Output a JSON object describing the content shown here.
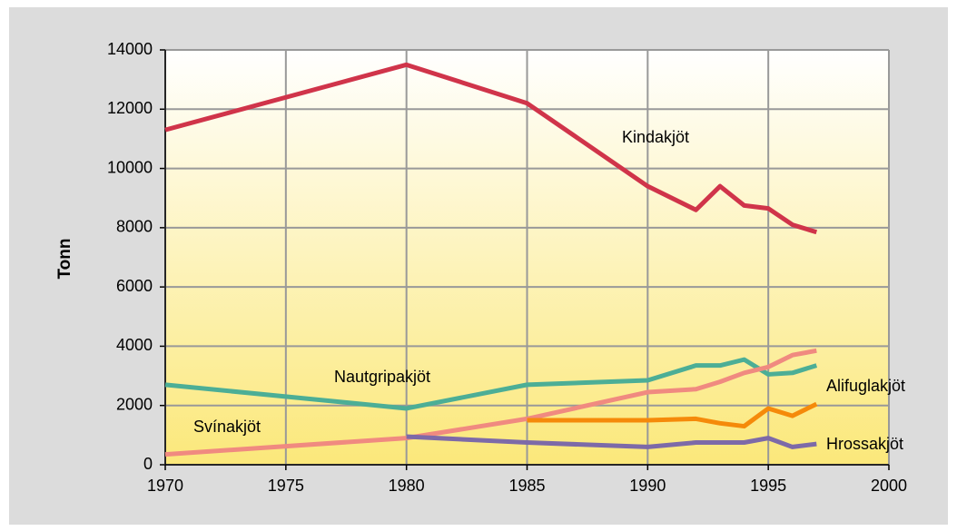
{
  "chart_data": {
    "type": "line",
    "y_label": "Tonn",
    "x": [
      1970,
      1980,
      1985,
      1990,
      1992,
      1993,
      1994,
      1995,
      1996,
      1997
    ],
    "series": [
      {
        "name": "Kindakjöt",
        "color": "#d0344a",
        "values": [
          11300,
          13500,
          12200,
          9400,
          8600,
          9400,
          8750,
          8650,
          8100,
          7850
        ]
      },
      {
        "name": "Nautgripakjöt",
        "color": "#4cae96",
        "values": [
          2700,
          1900,
          2700,
          2850,
          3350,
          3350,
          3550,
          3050,
          3100,
          3350
        ]
      },
      {
        "name": "Svínakjöt",
        "color": "#f08a80",
        "values": [
          350,
          900,
          1550,
          2450,
          2550,
          2800,
          3100,
          3300,
          3700,
          3850
        ]
      },
      {
        "name": "Alifuglakjöt",
        "color": "#f58a0a",
        "values": [
          null,
          null,
          1500,
          1500,
          1550,
          1400,
          1300,
          1900,
          1650,
          2050
        ]
      },
      {
        "name": "Hrossakjöt",
        "color": "#7d6aa8",
        "values": [
          null,
          950,
          750,
          600,
          750,
          750,
          750,
          900,
          600,
          700
        ]
      }
    ],
    "xlim": [
      1970,
      2000
    ],
    "xticks": [
      1970,
      1975,
      1980,
      1985,
      1990,
      1995,
      2000
    ],
    "ylim": [
      0,
      14000
    ],
    "yticks": [
      0,
      2000,
      4000,
      6000,
      8000,
      10000,
      12000,
      14000
    ],
    "grid": true
  }
}
